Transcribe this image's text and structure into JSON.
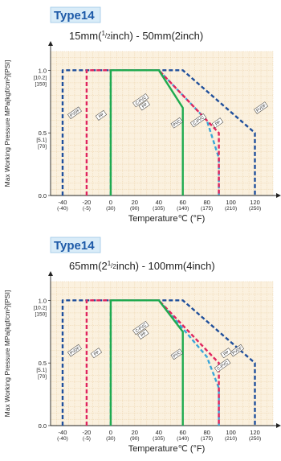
{
  "chart_data": [
    {
      "type": "line",
      "badge": "Type14",
      "subtitle_parts": [
        "15mm(",
        "1",
        "/",
        "2",
        "inch) - 50mm(2inch)"
      ],
      "xlabel": "Temperature℃ (°F)",
      "ylabel": "Max Working Pressure MPa{kgf/cm²}[PSI]",
      "xlim": [
        -50,
        135
      ],
      "ylim": [
        0,
        1.0
      ],
      "x_ticks": [
        {
          "v": -40,
          "label": "-40",
          "sub": "(-40)"
        },
        {
          "v": -20,
          "label": "-20",
          "sub": "(-5)"
        },
        {
          "v": 0,
          "label": "0",
          "sub": "(30)"
        },
        {
          "v": 20,
          "label": "20",
          "sub": "(90)"
        },
        {
          "v": 40,
          "label": "40",
          "sub": "(105)"
        },
        {
          "v": 60,
          "label": "60",
          "sub": "(140)"
        },
        {
          "v": 80,
          "label": "80",
          "sub": "(175)"
        },
        {
          "v": 100,
          "label": "100",
          "sub": "(210)"
        },
        {
          "v": 120,
          "label": "120",
          "sub": "(250)"
        }
      ],
      "y_ticks": [
        {
          "v": 1.0,
          "lines": [
            "1.0",
            "[10.2]",
            "[150]"
          ]
        },
        {
          "v": 0.5,
          "lines": [
            "0.5",
            "[5.1]",
            "[70]"
          ]
        },
        {
          "v": 0.0,
          "lines": [
            "0.0"
          ]
        }
      ],
      "series": [
        {
          "name": "PVDF",
          "color": "#1f4f9c",
          "dash": true,
          "points": [
            [
              -40,
              0
            ],
            [
              -40,
              1.0
            ],
            [
              60,
              1.0
            ],
            [
              120,
              0.5
            ],
            [
              120,
              0
            ]
          ],
          "tag_at": [
            125,
            0.7
          ]
        },
        {
          "name": "C-PVC",
          "color": "#3aa6d8",
          "dash": true,
          "points": [
            [
              0,
              0
            ],
            [
              0,
              1.0
            ],
            [
              40,
              1.0
            ],
            [
              80,
              0.6
            ],
            [
              90,
              0.3
            ],
            [
              90,
              0
            ]
          ],
          "tag_at": [
            25,
            0.76
          ]
        },
        {
          "name": "PP",
          "color": "#e0245e",
          "dash": true,
          "points": [
            [
              -20,
              0
            ],
            [
              -20,
              1.0
            ],
            [
              40,
              1.0
            ],
            [
              90,
              0.5
            ],
            [
              90,
              0
            ]
          ],
          "tag_at": [
            28,
            0.72
          ]
        },
        {
          "name": "PVC",
          "color": "#1faa4f",
          "dash": false,
          "points": [
            [
              0,
              0
            ],
            [
              0,
              1.0
            ],
            [
              40,
              1.0
            ],
            [
              60,
              0.7
            ],
            [
              60,
              0
            ]
          ],
          "tag_at": [
            55,
            0.58
          ]
        }
      ],
      "extra_tags": [
        {
          "text": "PVDF",
          "at": [
            -30,
            0.66
          ]
        },
        {
          "text": "PP",
          "at": [
            -8,
            0.64
          ]
        },
        {
          "text": "C-PVC",
          "at": [
            73,
            0.6
          ]
        },
        {
          "text": "PP",
          "at": [
            89,
            0.58
          ]
        }
      ]
    },
    {
      "type": "line",
      "badge": "Type14",
      "subtitle_parts": [
        "65mm(2",
        "1",
        "/",
        "2",
        "inch) - 100mm(4inch)"
      ],
      "xlabel": "Temperature℃ (°F)",
      "ylabel": "Max Working Pressure MPa{kgf/cm²}[PSI]",
      "xlim": [
        -50,
        135
      ],
      "ylim": [
        0,
        1.0
      ],
      "x_ticks": [
        {
          "v": -40,
          "label": "-40",
          "sub": "(-40)"
        },
        {
          "v": -20,
          "label": "-20",
          "sub": "(-5)"
        },
        {
          "v": 0,
          "label": "0",
          "sub": "(30)"
        },
        {
          "v": 20,
          "label": "20",
          "sub": "(90)"
        },
        {
          "v": 40,
          "label": "40",
          "sub": "(105)"
        },
        {
          "v": 60,
          "label": "60",
          "sub": "(140)"
        },
        {
          "v": 80,
          "label": "80",
          "sub": "(175)"
        },
        {
          "v": 100,
          "label": "100",
          "sub": "(210)"
        },
        {
          "v": 120,
          "label": "120",
          "sub": "(250)"
        }
      ],
      "y_ticks": [
        {
          "v": 1.0,
          "lines": [
            "1.0",
            "[10.2]",
            "[150]"
          ]
        },
        {
          "v": 0.5,
          "lines": [
            "0.5",
            "[5.1]",
            "[70]"
          ]
        },
        {
          "v": 0.0,
          "lines": [
            "0.0"
          ]
        }
      ],
      "series": [
        {
          "name": "PVDF",
          "color": "#1f4f9c",
          "dash": true,
          "points": [
            [
              -40,
              0
            ],
            [
              -40,
              1.0
            ],
            [
              60,
              1.0
            ],
            [
              120,
              0.5
            ],
            [
              120,
              0
            ]
          ],
          "tag_at": [
            105,
            0.6
          ]
        },
        {
          "name": "C-PVC",
          "color": "#3aa6d8",
          "dash": true,
          "points": [
            [
              0,
              0
            ],
            [
              0,
              1.0
            ],
            [
              40,
              1.0
            ],
            [
              80,
              0.55
            ],
            [
              90,
              0.3
            ],
            [
              90,
              0
            ]
          ],
          "tag_at": [
            25,
            0.78
          ]
        },
        {
          "name": "PP",
          "color": "#e0245e",
          "dash": true,
          "points": [
            [
              -20,
              0
            ],
            [
              -20,
              1.0
            ],
            [
              40,
              1.0
            ],
            [
              90,
              0.5
            ],
            [
              90,
              0
            ]
          ],
          "tag_at": [
            27,
            0.73
          ]
        },
        {
          "name": "PVC",
          "color": "#1faa4f",
          "dash": false,
          "points": [
            [
              0,
              0
            ],
            [
              0,
              1.0
            ],
            [
              40,
              1.0
            ],
            [
              60,
              0.75
            ],
            [
              60,
              0
            ]
          ],
          "tag_at": [
            55,
            0.57
          ]
        }
      ],
      "extra_tags": [
        {
          "text": "PVDF",
          "at": [
            -30,
            0.6
          ]
        },
        {
          "text": "PP",
          "at": [
            -12,
            0.58
          ]
        },
        {
          "text": "PP",
          "at": [
            96,
            0.58
          ]
        },
        {
          "text": "C-PVC",
          "at": [
            93,
            0.48
          ]
        }
      ]
    }
  ]
}
